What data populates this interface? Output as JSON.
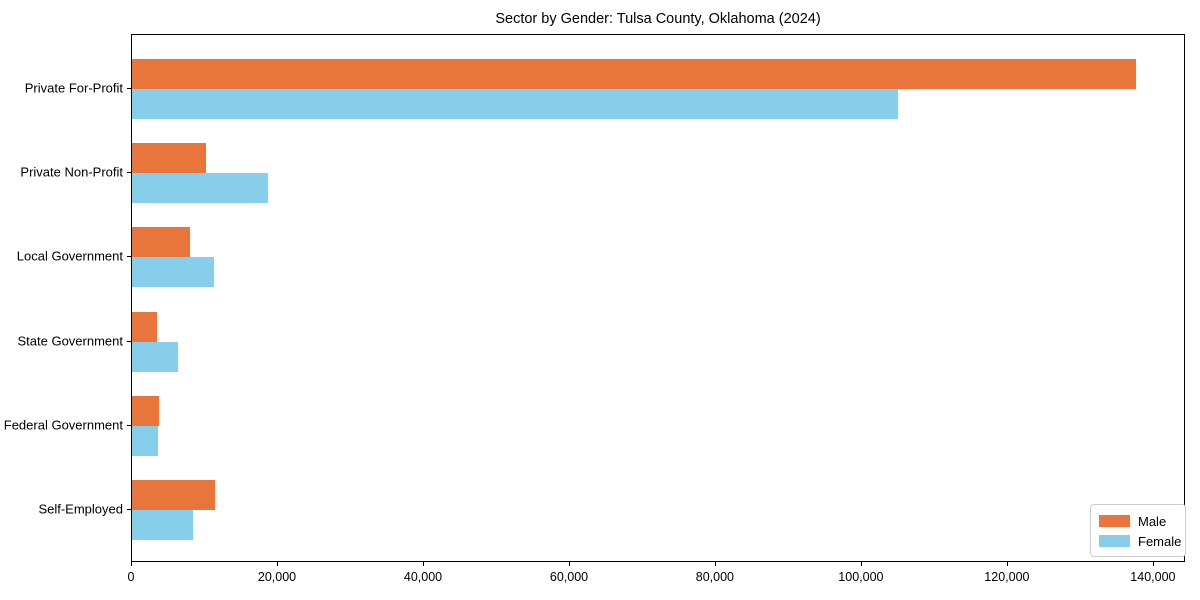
{
  "title": "Sector by Gender: Tulsa County, Oklahoma (2024)",
  "colors": {
    "male": "#e8763c",
    "female": "#87ceeb",
    "spine": "#000000",
    "background": "#ffffff",
    "legend_border": "#cccccc"
  },
  "legend": {
    "items": [
      {
        "label": "Male",
        "color": "#e8763c"
      },
      {
        "label": "Female",
        "color": "#87ceeb"
      }
    ],
    "position": "lower right"
  },
  "chart_data": {
    "type": "bar",
    "orientation": "horizontal",
    "title": "Sector by Gender: Tulsa County, Oklahoma (2024)",
    "xlabel": "",
    "ylabel": "",
    "categories": [
      "Private For-Profit",
      "Private Non-Profit",
      "Local Government",
      "State Government",
      "Federal Government",
      "Self-Employed"
    ],
    "series": [
      {
        "name": "Male",
        "color": "#e8763c",
        "values": [
          137500,
          10100,
          7900,
          3400,
          3700,
          11400
        ]
      },
      {
        "name": "Female",
        "color": "#87ceeb",
        "values": [
          105000,
          18600,
          11200,
          6300,
          3600,
          8400
        ]
      }
    ],
    "xlim": [
      0,
      144400
    ],
    "xticks": [
      0,
      20000,
      40000,
      60000,
      80000,
      100000,
      120000,
      140000
    ],
    "xtick_labels": [
      "0",
      "20,000",
      "40,000",
      "60,000",
      "80,000",
      "100,000",
      "120,000",
      "140,000"
    ],
    "grid": false,
    "legend_position": "lower right"
  }
}
